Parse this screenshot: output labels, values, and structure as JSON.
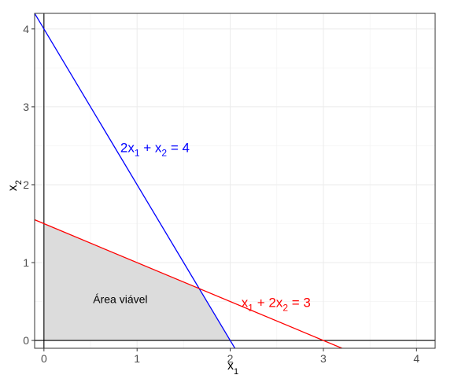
{
  "chart_data": {
    "type": "line",
    "title": "",
    "xlabel": {
      "base": "x",
      "sub": "1"
    },
    "ylabel": {
      "base": "x",
      "sub": "2"
    },
    "xlim": [
      -0.1,
      4.2
    ],
    "ylim": [
      -0.1,
      4.2
    ],
    "xticks": [
      0,
      1,
      2,
      3,
      4
    ],
    "yticks": [
      0,
      1,
      2,
      3,
      4
    ],
    "x_tick_labels": [
      "0",
      "1",
      "2",
      "3",
      "4"
    ],
    "y_tick_labels": [
      "0",
      "1",
      "2",
      "3",
      "4"
    ],
    "grid": true,
    "legend": "none",
    "reference_lines": [
      {
        "orientation": "vertical",
        "x": 0,
        "color": "#000000"
      },
      {
        "orientation": "horizontal",
        "y": 0,
        "color": "#000000"
      }
    ],
    "series": [
      {
        "label": {
          "a": "2x",
          "a_sub": "1",
          "plus": "+",
          "b": "x",
          "b_sub": "2",
          "rhs": "= 4"
        },
        "color": "#0000ff",
        "x": [
          -0.1,
          2.1
        ],
        "y": [
          4.2,
          -0.2
        ],
        "annotation_at": [
          0.82,
          2.42
        ]
      },
      {
        "label": {
          "a": "x",
          "a_sub": "1",
          "plus": "+",
          "b": "2x",
          "b_sub": "2",
          "rhs": "= 3"
        },
        "color": "#ff0000",
        "x": [
          -0.1,
          3.2
        ],
        "y": [
          1.55,
          -0.1
        ],
        "annotation_at": [
          2.12,
          0.43
        ]
      }
    ],
    "region": {
      "label": "Área viável",
      "fill": "#dcdcdc",
      "vertices": [
        [
          0,
          0
        ],
        [
          0,
          1.5
        ],
        [
          1.6667,
          0.6667
        ],
        [
          2,
          0
        ]
      ],
      "label_at": [
        0.82,
        0.48
      ]
    }
  }
}
